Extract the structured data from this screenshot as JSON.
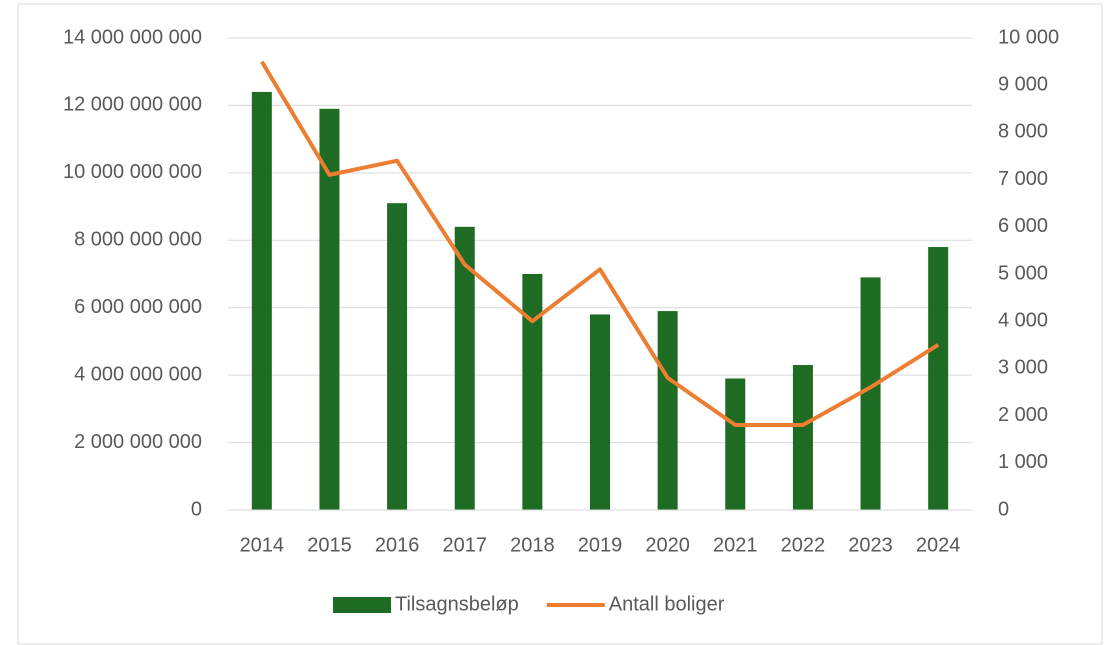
{
  "chart_data": {
    "type": "bar+line",
    "categories": [
      "2014",
      "2015",
      "2016",
      "2017",
      "2018",
      "2019",
      "2020",
      "2021",
      "2022",
      "2023",
      "2024"
    ],
    "series": [
      {
        "name": "Tilsagnsbeløp",
        "type": "bar",
        "color": "#1e6b23",
        "axis": "y",
        "values": [
          12400000000,
          11900000000,
          9100000000,
          8400000000,
          7000000000,
          5800000000,
          5900000000,
          3900000000,
          4300000000,
          6900000000,
          7800000000
        ]
      },
      {
        "name": "Antall boliger",
        "type": "line",
        "color": "#ed7d31",
        "axis": "y2",
        "values": [
          9500,
          7100,
          7400,
          5200,
          4000,
          5100,
          2800,
          1800,
          1800,
          2600,
          3500
        ]
      }
    ],
    "ylim": [
      0,
      14000000000
    ],
    "yticks": [
      0,
      {
        "value": 2000000000,
        "label": "2 000 000 000"
      },
      {
        "value": 4000000000,
        "label": "4 000 000 000"
      },
      {
        "value": 6000000000,
        "label": "6 000 000 000"
      },
      {
        "value": 8000000000,
        "label": "8 000 000 000"
      },
      {
        "value": 10000000000,
        "label": "10 000 000 000"
      },
      {
        "value": 12000000000,
        "label": "12 000 000 000"
      },
      {
        "value": 14000000000,
        "label": "14 000 000 000"
      }
    ],
    "y2lim": [
      0,
      10000
    ],
    "y2ticks": [
      0,
      {
        "value": 1000,
        "label": "1 000"
      },
      {
        "value": 2000,
        "label": "2 000"
      },
      {
        "value": 3000,
        "label": "3 000"
      },
      {
        "value": 4000,
        "label": "4 000"
      },
      {
        "value": 5000,
        "label": "5 000"
      },
      {
        "value": 6000,
        "label": "6 000"
      },
      {
        "value": 7000,
        "label": "7 000"
      },
      {
        "value": 8000,
        "label": "8 000"
      },
      {
        "value": 9000,
        "label": "9 000"
      },
      {
        "value": 10000,
        "label": "10 000"
      }
    ],
    "grid": true,
    "legend": "bottom"
  }
}
